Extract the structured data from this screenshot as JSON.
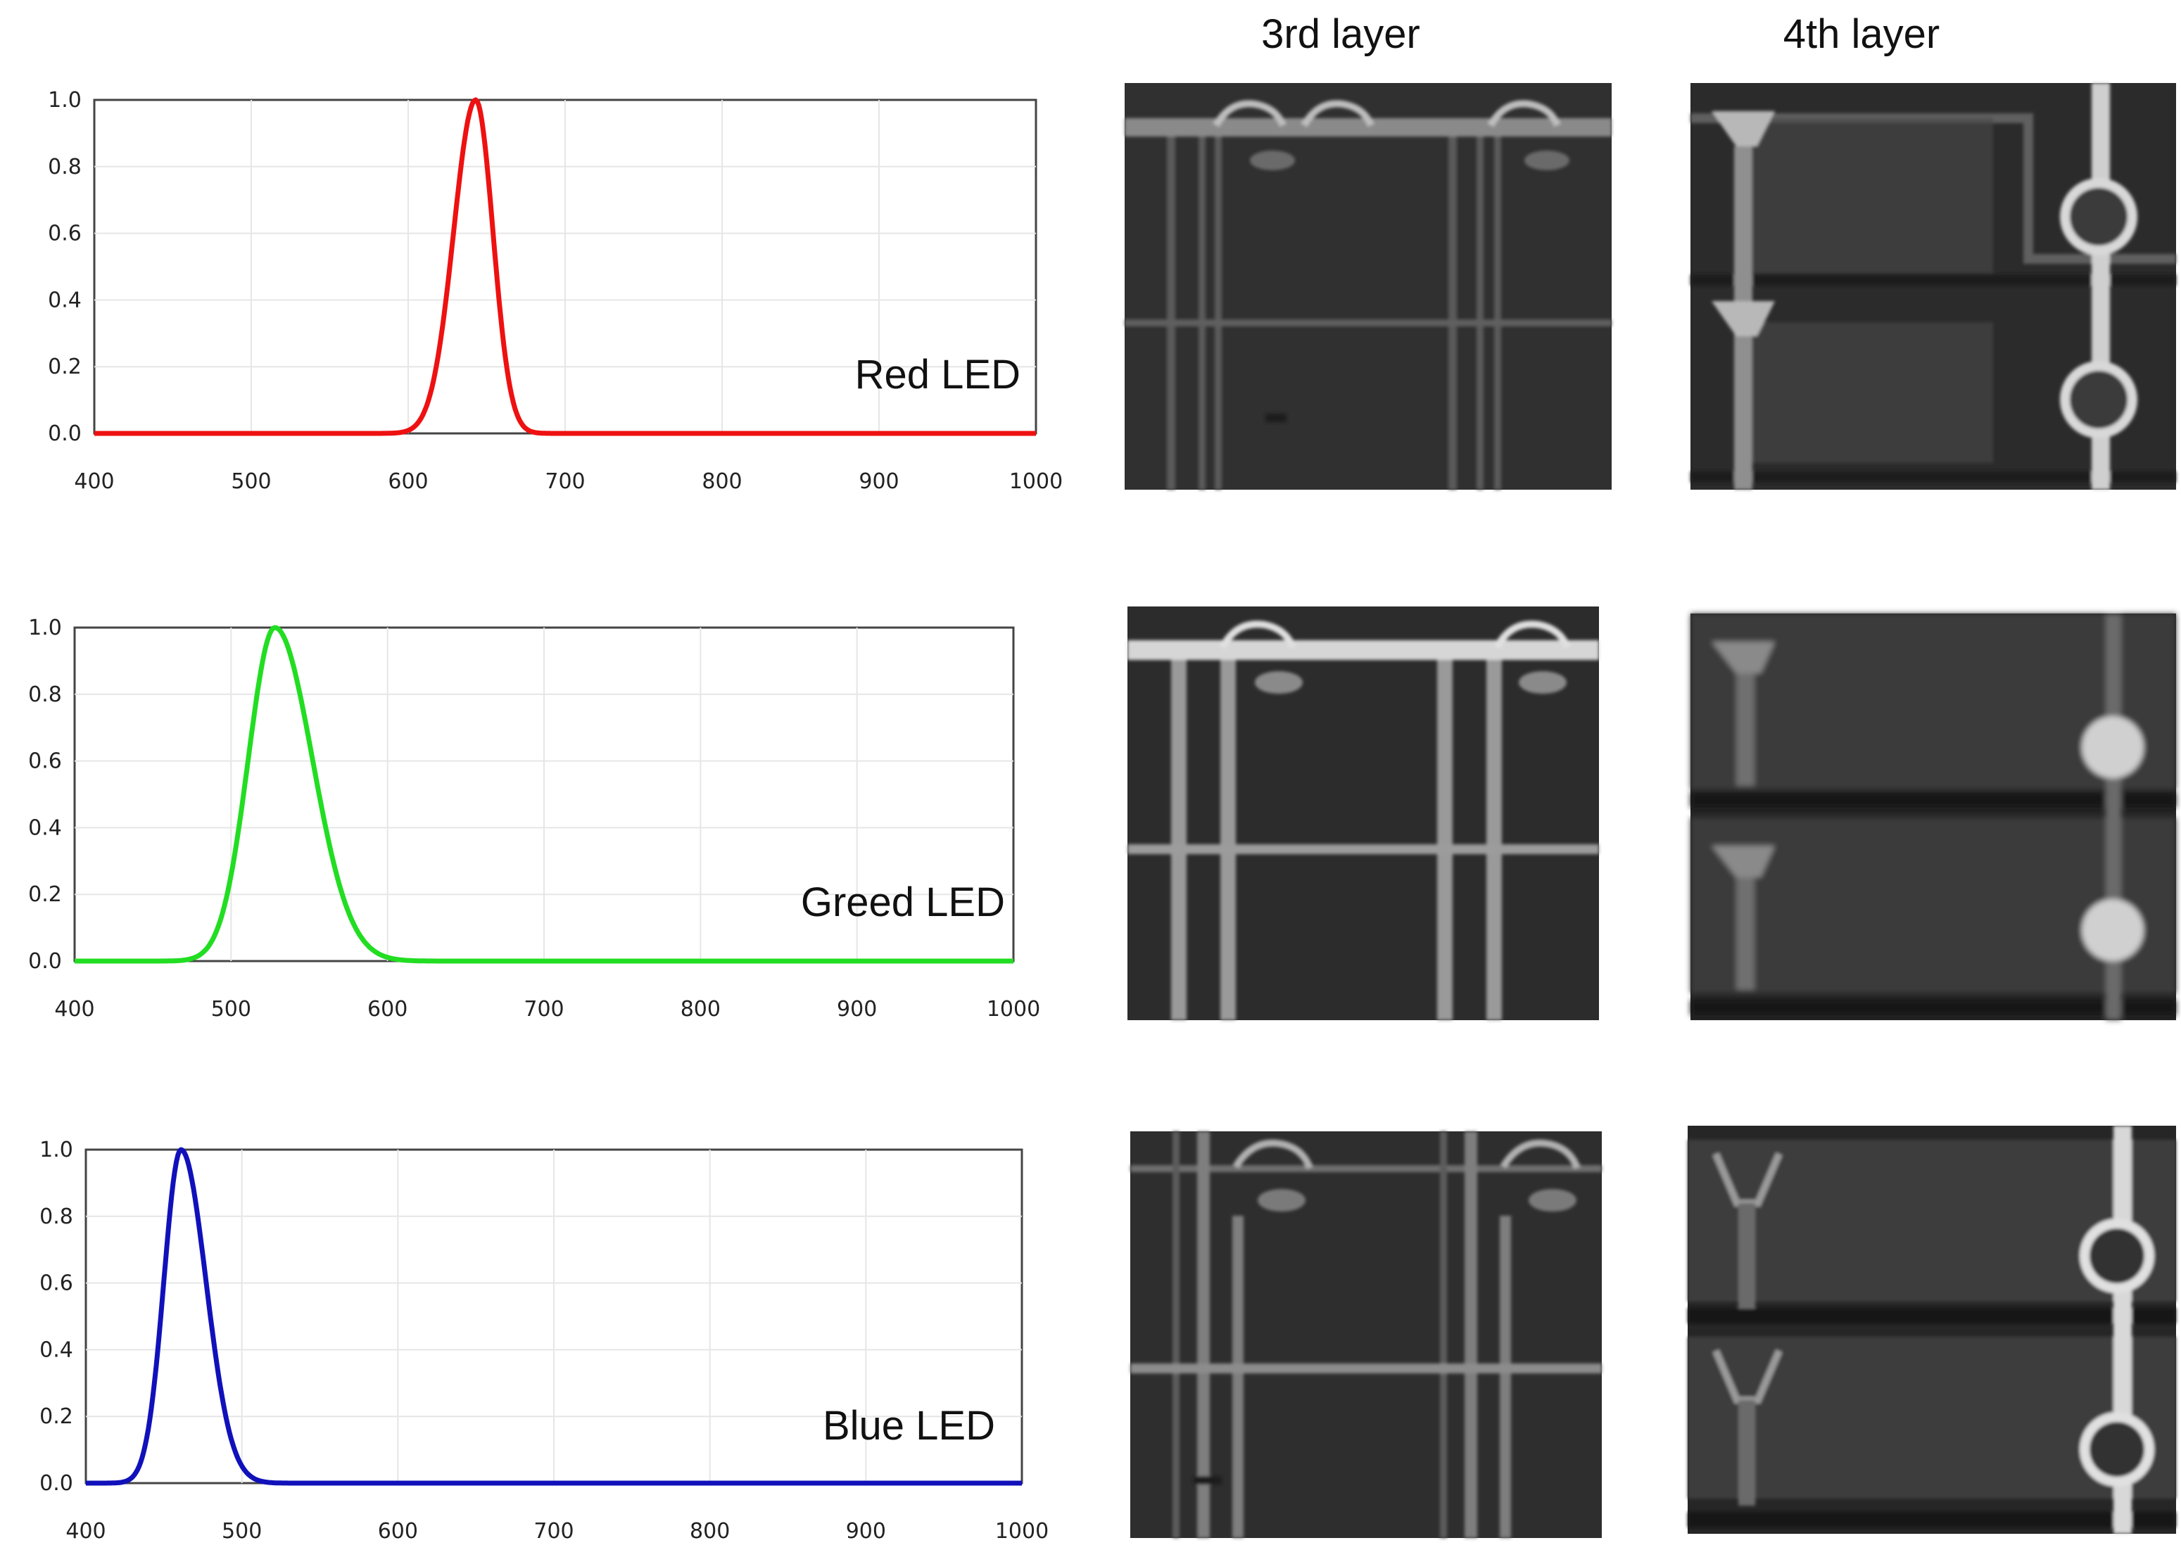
{
  "headers": {
    "col3": "3rd layer",
    "col4": "4th layer"
  },
  "colors": {
    "red": "#ee1111",
    "green": "#22dd22",
    "blue": "#1111bb"
  },
  "chart_data": [
    {
      "type": "line",
      "label": "Red LED",
      "color": "#ee1111",
      "peak": 643,
      "sigma_left": 14,
      "sigma_right": 11,
      "xlim": [
        400,
        1000
      ],
      "ylim": [
        0,
        1.0
      ],
      "xticks": [
        "400",
        "500",
        "600",
        "700",
        "800",
        "900",
        "1000"
      ],
      "yticks": [
        "0.0",
        "0.2",
        "0.4",
        "0.6",
        "0.8",
        "1.0"
      ],
      "x": [
        400,
        580,
        600,
        610,
        620,
        630,
        635,
        640,
        643,
        646,
        650,
        655,
        660,
        670,
        680,
        700,
        1000
      ],
      "y": [
        0,
        0.01,
        0.04,
        0.1,
        0.26,
        0.6,
        0.8,
        0.96,
        1.0,
        0.97,
        0.86,
        0.6,
        0.35,
        0.08,
        0.02,
        0,
        0
      ],
      "grid": true
    },
    {
      "type": "line",
      "label": "Greed LED",
      "color": "#22dd22",
      "peak": 528,
      "sigma_left": 17,
      "sigma_right": 24,
      "xlim": [
        400,
        1000
      ],
      "ylim": [
        0,
        1.0
      ],
      "xticks": [
        "400",
        "500",
        "600",
        "700",
        "800",
        "900",
        "1000"
      ],
      "yticks": [
        "0.0",
        "0.2",
        "0.4",
        "0.6",
        "0.8",
        "1.0"
      ],
      "x": [
        400,
        470,
        480,
        490,
        500,
        510,
        520,
        528,
        535,
        545,
        555,
        570,
        585,
        600,
        620,
        650,
        700,
        1000
      ],
      "y": [
        0,
        0.01,
        0.04,
        0.1,
        0.25,
        0.55,
        0.88,
        1.0,
        0.95,
        0.77,
        0.55,
        0.28,
        0.12,
        0.05,
        0.02,
        0.005,
        0,
        0
      ],
      "grid": true
    },
    {
      "type": "line",
      "label": "Blue LED",
      "color": "#1111bb",
      "peak": 461,
      "sigma_left": 11,
      "sigma_right": 16,
      "xlim": [
        400,
        1000
      ],
      "ylim": [
        0,
        1.0
      ],
      "xticks": [
        "400",
        "500",
        "600",
        "700",
        "800",
        "900",
        "1000"
      ],
      "yticks": [
        "0.0",
        "0.2",
        "0.4",
        "0.6",
        "0.8",
        "1.0"
      ],
      "x": [
        400,
        420,
        430,
        440,
        450,
        455,
        461,
        467,
        475,
        485,
        495,
        510,
        530,
        560,
        1000
      ],
      "y": [
        0,
        0.01,
        0.04,
        0.15,
        0.48,
        0.75,
        1.0,
        0.93,
        0.68,
        0.38,
        0.18,
        0.06,
        0.01,
        0,
        0
      ],
      "grid": true
    }
  ]
}
